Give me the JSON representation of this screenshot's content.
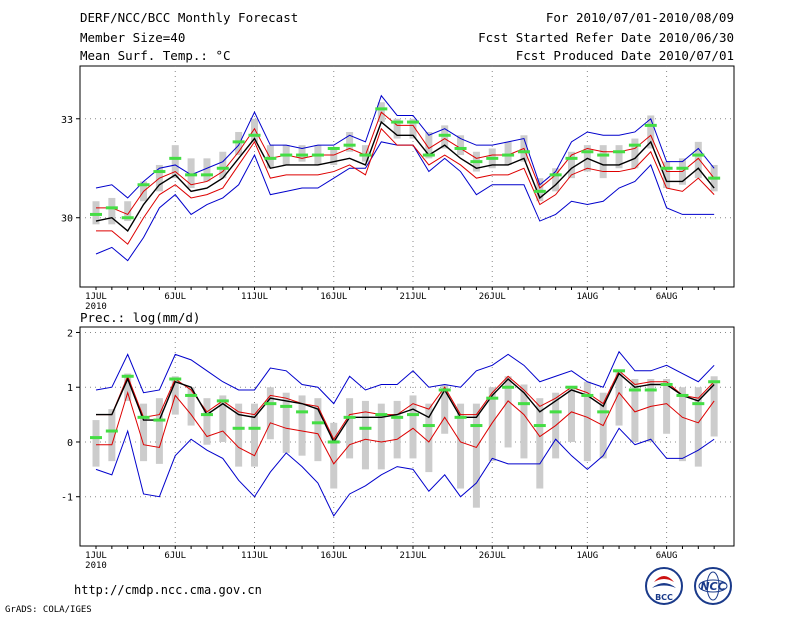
{
  "header": {
    "title": "DERF/NCC/BCC Monthly Forecast",
    "member": "Member Size=40",
    "variable": "Mean Surf. Temp.: °C",
    "period": "For 2010/07/01-2010/08/09",
    "started": "Fcst Started Refer Date 2010/06/30",
    "produced": "Fcst Produced Date 2010/07/01"
  },
  "footer": {
    "url": "http://cmdp.ncc.cma.gov.cn",
    "grads": "GrADS: COLA/IGES",
    "logo_left": "BCC",
    "logo_right": "NCC"
  },
  "colors": {
    "bar": "#cccccc",
    "median": "#44dd44",
    "mean": "#000000",
    "sd_band": "#dd0000",
    "range": "#0000cc",
    "grid": "#888888"
  },
  "chart_data": [
    {
      "type": "line",
      "title": "Mean Surf. Temp.: °C",
      "ylabel": "°C",
      "ylim": [
        27.9,
        34.6
      ],
      "yticks": [
        30,
        33
      ],
      "xticks": [
        {
          "day": 1,
          "label": "1JUL",
          "sub": "2010"
        },
        {
          "day": 6,
          "label": "6JUL"
        },
        {
          "day": 11,
          "label": "11JUL"
        },
        {
          "day": 16,
          "label": "16JUL"
        },
        {
          "day": 21,
          "label": "21JUL"
        },
        {
          "day": 26,
          "label": "26JUL"
        },
        {
          "day": 32,
          "label": "1AUG"
        },
        {
          "day": 37,
          "label": "6AUG"
        }
      ],
      "days": [
        1,
        2,
        3,
        4,
        5,
        6,
        7,
        8,
        9,
        10,
        11,
        12,
        13,
        14,
        15,
        16,
        17,
        18,
        19,
        20,
        21,
        22,
        23,
        24,
        25,
        26,
        27,
        28,
        29,
        30,
        31,
        32,
        33,
        34,
        35,
        36,
        37,
        38,
        39,
        40
      ],
      "ens_max": [
        30.9,
        31.0,
        30.6,
        31.1,
        31.5,
        31.6,
        31.3,
        31.5,
        31.7,
        32.2,
        33.2,
        32.2,
        32.2,
        32.1,
        32.2,
        32.2,
        32.5,
        32.3,
        33.7,
        33.1,
        33.1,
        32.5,
        32.7,
        32.4,
        32.2,
        32.2,
        32.3,
        32.4,
        31.0,
        31.4,
        32.3,
        32.6,
        32.5,
        32.5,
        32.6,
        33.0,
        31.7,
        31.7,
        32.1,
        31.5
      ],
      "sd_upper": [
        30.3,
        30.3,
        30.1,
        30.8,
        31.2,
        31.4,
        31.0,
        31.1,
        31.4,
        32.0,
        32.7,
        31.8,
        31.9,
        31.8,
        31.9,
        31.9,
        32.1,
        31.9,
        33.2,
        32.8,
        32.8,
        32.1,
        32.4,
        32.1,
        31.8,
        31.9,
        31.9,
        32.1,
        30.9,
        31.3,
        31.9,
        32.1,
        32.0,
        32.0,
        32.1,
        32.5,
        31.4,
        31.4,
        31.8,
        31.2
      ],
      "ens_mean": [
        29.9,
        30.0,
        29.6,
        30.4,
        31.0,
        31.3,
        30.8,
        30.9,
        31.2,
        31.8,
        32.4,
        31.5,
        31.6,
        31.6,
        31.6,
        31.7,
        31.8,
        31.6,
        32.9,
        32.5,
        32.5,
        31.9,
        32.2,
        31.8,
        31.5,
        31.6,
        31.6,
        31.8,
        30.6,
        31.0,
        31.5,
        31.8,
        31.6,
        31.6,
        31.8,
        32.3,
        31.1,
        31.1,
        31.5,
        30.9
      ],
      "sd_lower": [
        29.6,
        29.6,
        29.2,
        30.0,
        30.7,
        31.0,
        30.6,
        30.7,
        30.9,
        31.6,
        32.3,
        31.2,
        31.3,
        31.3,
        31.3,
        31.4,
        31.6,
        31.3,
        32.7,
        32.2,
        32.2,
        31.6,
        31.9,
        31.6,
        31.2,
        31.3,
        31.3,
        31.5,
        30.4,
        30.7,
        31.3,
        31.5,
        31.4,
        31.4,
        31.5,
        32.0,
        30.9,
        30.8,
        31.2,
        30.7
      ],
      "ens_min": [
        28.9,
        29.1,
        28.7,
        29.4,
        30.3,
        30.7,
        30.1,
        30.4,
        30.6,
        31.0,
        31.9,
        30.7,
        30.8,
        30.9,
        30.9,
        31.2,
        31.5,
        31.5,
        32.3,
        32.2,
        32.2,
        31.4,
        31.8,
        31.4,
        30.7,
        31.0,
        31.0,
        31.0,
        29.9,
        30.1,
        30.5,
        30.4,
        30.5,
        30.9,
        31.1,
        31.6,
        30.3,
        30.1,
        30.1,
        30.1
      ],
      "median": [
        30.1,
        30.3,
        30.0,
        31.0,
        31.4,
        31.8,
        31.3,
        31.3,
        31.5,
        32.3,
        32.5,
        31.8,
        31.9,
        31.9,
        31.9,
        32.1,
        32.2,
        31.9,
        33.3,
        32.9,
        32.9,
        31.9,
        32.5,
        32.1,
        31.7,
        31.8,
        31.9,
        32.0,
        30.8,
        31.3,
        31.8,
        32.0,
        31.9,
        32.0,
        32.2,
        32.8,
        31.5,
        31.5,
        31.9,
        31.2
      ],
      "q_high": [
        30.5,
        30.6,
        30.5,
        31.1,
        31.6,
        32.2,
        31.8,
        31.8,
        32.0,
        32.6,
        33.0,
        32.2,
        32.2,
        32.2,
        32.2,
        32.1,
        32.6,
        32.2,
        33.5,
        33.0,
        33.0,
        32.6,
        32.8,
        32.5,
        32.0,
        32.1,
        32.3,
        32.5,
        31.2,
        31.5,
        32.0,
        32.2,
        32.2,
        32.2,
        32.4,
        33.1,
        31.7,
        31.8,
        32.3,
        31.6
      ],
      "q_low": [
        29.8,
        29.8,
        29.9,
        30.5,
        30.8,
        31.2,
        30.9,
        31.1,
        31.2,
        31.9,
        32.3,
        31.5,
        31.6,
        31.7,
        31.6,
        31.6,
        32.0,
        31.7,
        32.9,
        32.4,
        32.4,
        31.8,
        32.1,
        31.9,
        31.4,
        31.5,
        31.6,
        31.7,
        30.5,
        30.8,
        31.2,
        31.4,
        31.2,
        31.5,
        31.5,
        32.1,
        30.9,
        31.0,
        31.2,
        30.8
      ]
    },
    {
      "type": "line",
      "title": "Prec.: log(mm/d)",
      "ylabel": "log(mm/d)",
      "ylim": [
        -1.9,
        2.1
      ],
      "yticks": [
        -1,
        0,
        1,
        2
      ],
      "xticks": [
        {
          "day": 1,
          "label": "1JUL",
          "sub": "2010"
        },
        {
          "day": 6,
          "label": "6JUL"
        },
        {
          "day": 11,
          "label": "11JUL"
        },
        {
          "day": 16,
          "label": "16JUL"
        },
        {
          "day": 21,
          "label": "21JUL"
        },
        {
          "day": 26,
          "label": "26JUL"
        },
        {
          "day": 32,
          "label": "1AUG"
        },
        {
          "day": 37,
          "label": "6AUG"
        }
      ],
      "days": [
        1,
        2,
        3,
        4,
        5,
        6,
        7,
        8,
        9,
        10,
        11,
        12,
        13,
        14,
        15,
        16,
        17,
        18,
        19,
        20,
        21,
        22,
        23,
        24,
        25,
        26,
        27,
        28,
        29,
        30,
        31,
        32,
        33,
        34,
        35,
        36,
        37,
        38,
        39,
        40
      ],
      "ens_max": [
        0.95,
        1.0,
        1.6,
        0.9,
        0.95,
        1.6,
        1.5,
        1.3,
        1.1,
        0.95,
        0.95,
        1.35,
        1.3,
        1.05,
        1.0,
        0.7,
        1.2,
        0.95,
        1.05,
        1.05,
        1.3,
        1.0,
        1.05,
        1.0,
        1.3,
        1.4,
        1.6,
        1.4,
        1.1,
        1.2,
        1.3,
        1.1,
        1.0,
        1.65,
        1.3,
        1.3,
        1.4,
        1.25,
        1.1,
        1.4
      ],
      "sd_upper": [
        0.5,
        0.5,
        1.2,
        0.45,
        0.5,
        1.15,
        0.95,
        0.55,
        0.75,
        0.55,
        0.5,
        0.85,
        0.8,
        0.7,
        0.65,
        0.05,
        0.5,
        0.55,
        0.5,
        0.5,
        0.7,
        0.6,
        1.0,
        0.5,
        0.5,
        0.9,
        1.2,
        0.95,
        0.65,
        0.8,
        1.0,
        0.9,
        0.7,
        1.3,
        1.05,
        1.1,
        1.1,
        0.85,
        0.8,
        1.1
      ],
      "ens_mean": [
        0.5,
        0.5,
        1.15,
        0.4,
        0.4,
        1.1,
        1.0,
        0.5,
        0.7,
        0.5,
        0.45,
        0.8,
        0.75,
        0.7,
        0.6,
        0.0,
        0.45,
        0.45,
        0.45,
        0.5,
        0.6,
        0.45,
        0.95,
        0.45,
        0.45,
        0.85,
        1.15,
        0.9,
        0.55,
        0.75,
        0.95,
        0.85,
        0.65,
        1.25,
        1.0,
        1.05,
        1.05,
        0.85,
        0.75,
        1.05
      ],
      "sd_lower": [
        -0.05,
        -0.05,
        0.9,
        -0.05,
        -0.1,
        0.85,
        0.5,
        0.1,
        0.2,
        -0.1,
        -0.25,
        0.35,
        0.25,
        0.2,
        0.15,
        -0.4,
        -0.05,
        0.05,
        0.0,
        0.05,
        0.25,
        0.0,
        0.45,
        0.0,
        -0.1,
        0.35,
        0.75,
        0.5,
        0.1,
        0.3,
        0.55,
        0.45,
        0.3,
        0.9,
        0.55,
        0.65,
        0.7,
        0.45,
        0.35,
        0.75
      ],
      "ens_min": [
        -0.5,
        -0.6,
        0.2,
        -0.95,
        -1.0,
        -0.25,
        0.05,
        -0.15,
        -0.3,
        -0.7,
        -1.0,
        -0.55,
        -0.2,
        -0.45,
        -0.75,
        -1.35,
        -0.95,
        -0.8,
        -0.6,
        -0.45,
        -0.5,
        -0.9,
        -0.6,
        -1.0,
        -0.75,
        -0.3,
        -0.4,
        -0.4,
        -0.4,
        0.05,
        -0.25,
        -0.5,
        -0.25,
        0.25,
        -0.05,
        0.05,
        -0.3,
        -0.3,
        -0.15,
        0.05
      ],
      "median": [
        0.08,
        0.2,
        1.2,
        0.45,
        0.4,
        1.15,
        0.85,
        0.5,
        0.75,
        0.25,
        0.25,
        0.7,
        0.65,
        0.55,
        0.35,
        0.0,
        0.45,
        0.25,
        0.5,
        0.45,
        0.5,
        0.3,
        0.95,
        0.45,
        0.3,
        0.8,
        1.0,
        0.7,
        0.3,
        0.55,
        1.0,
        0.85,
        0.55,
        1.3,
        0.95,
        0.95,
        1.05,
        0.85,
        0.7,
        1.1
      ],
      "q_high": [
        0.4,
        0.6,
        1.25,
        0.7,
        0.8,
        1.2,
        1.0,
        0.8,
        0.85,
        0.7,
        0.7,
        1.0,
        0.9,
        0.85,
        0.8,
        0.35,
        0.8,
        0.75,
        0.7,
        0.75,
        0.85,
        0.7,
        1.05,
        0.7,
        0.7,
        1.0,
        1.2,
        1.05,
        0.8,
        0.9,
        1.0,
        1.1,
        0.9,
        1.3,
        1.15,
        1.15,
        1.15,
        1.0,
        1.0,
        1.2
      ],
      "q_low": [
        -0.45,
        -0.35,
        0.75,
        -0.35,
        -0.4,
        0.5,
        0.3,
        -0.05,
        0.0,
        -0.45,
        -0.45,
        0.05,
        -0.2,
        -0.25,
        -0.35,
        -0.85,
        -0.3,
        -0.5,
        -0.5,
        -0.3,
        -0.3,
        -0.55,
        0.15,
        -0.85,
        -1.2,
        -0.35,
        -0.1,
        -0.3,
        -0.85,
        -0.3,
        0.0,
        -0.35,
        -0.3,
        0.3,
        0.0,
        0.0,
        0.15,
        -0.35,
        -0.45,
        0.1
      ]
    }
  ]
}
